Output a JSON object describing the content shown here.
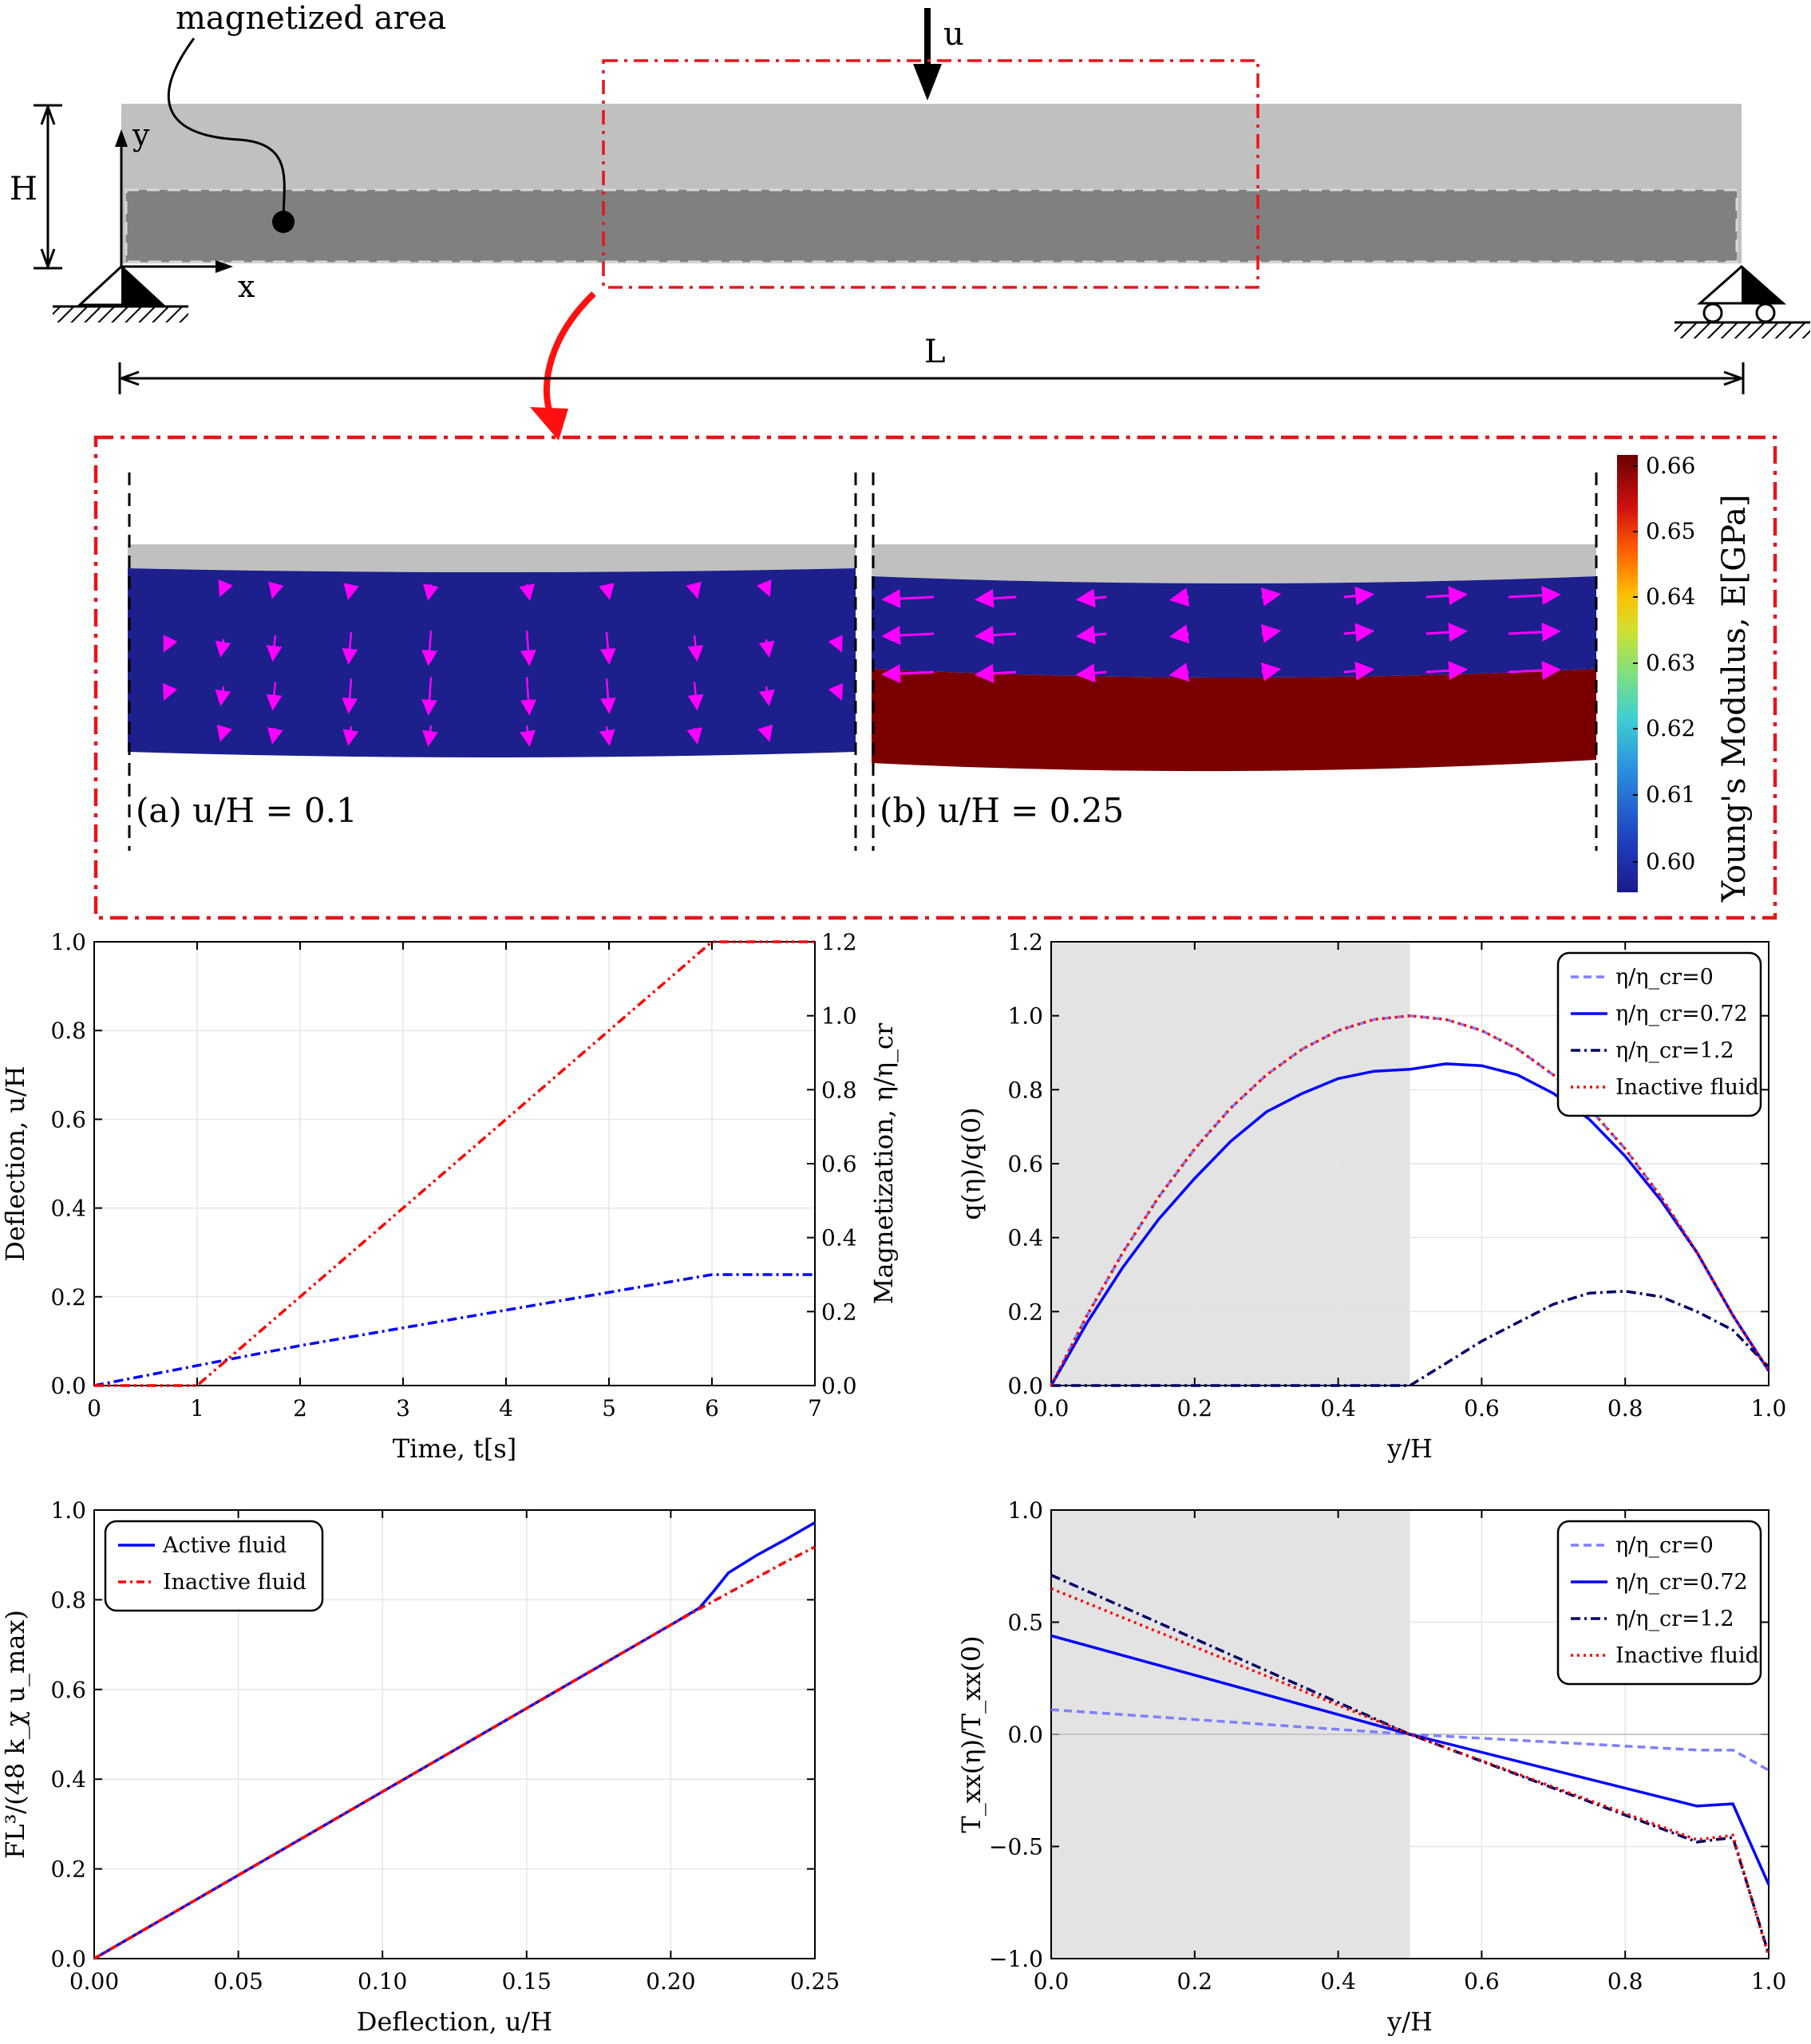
{
  "schematic": {
    "magnetized_label": "magnetized area",
    "load_label": "u",
    "height_label": "H",
    "length_label": "L",
    "y_axis_label": "y",
    "x_axis_label": "x"
  },
  "detail": {
    "panel_a_label": "(a) u/H = 0.1",
    "panel_b_label": "(b) u/H = 0.25",
    "colorbar_title": "Young's Modulus, E[GPa]",
    "colorbar_ticks": [
      "0.66",
      "0.65",
      "0.64",
      "0.63",
      "0.62",
      "0.61",
      "0.60"
    ],
    "colors": {
      "active_region": "#1c1f8c",
      "stiff_region": "#7a0000",
      "passive_layer": "#c0c0c0",
      "arrow": "#ff00ff",
      "frame": "#e8141b"
    }
  },
  "chart_data": [
    {
      "type": "line",
      "xlabel": "Time, t[s]",
      "ylabel": "Deflection, u/H",
      "y2label": "Magnetization, η/η_cr",
      "xlim": [
        0,
        7
      ],
      "ylim": [
        0,
        1.0
      ],
      "y2lim": [
        0,
        1.2
      ],
      "xticks": [
        "0",
        "1",
        "2",
        "3",
        "4",
        "5",
        "6",
        "7"
      ],
      "yticks": [
        "0.0",
        "0.2",
        "0.4",
        "0.6",
        "0.8",
        "1.0"
      ],
      "y2ticks": [
        "0.0",
        "0.2",
        "0.4",
        "0.6",
        "0.8",
        "1.0",
        "1.2"
      ],
      "grid": true,
      "series": [
        {
          "axis": "left",
          "color": "#0000ff",
          "x": [
            0,
            1,
            2,
            3,
            4,
            5,
            6,
            7
          ],
          "y": [
            0.0,
            0.045,
            0.09,
            0.13,
            0.17,
            0.21,
            0.25,
            0.25
          ]
        },
        {
          "axis": "right",
          "color": "#ff0000",
          "x": [
            0,
            1,
            2,
            3,
            4,
            5,
            6,
            7
          ],
          "y": [
            0.0,
            0.0,
            0.24,
            0.48,
            0.72,
            0.96,
            1.2,
            1.2
          ]
        }
      ]
    },
    {
      "type": "line",
      "xlabel": "y/H",
      "ylabel": "q(η)/q(0)",
      "xlim": [
        0,
        1.0
      ],
      "ylim": [
        0,
        1.2
      ],
      "xticks": [
        "0.0",
        "0.2",
        "0.4",
        "0.6",
        "0.8",
        "1.0"
      ],
      "yticks": [
        "0.0",
        "0.2",
        "0.4",
        "0.6",
        "0.8",
        "1.0",
        "1.2"
      ],
      "grid": true,
      "legend": "top-right",
      "shaded_x": [
        0,
        0.5
      ],
      "series": [
        {
          "name": "η/η_cr=0",
          "color": "#7f7fff",
          "dash": "10,6",
          "x": [
            0,
            0.05,
            0.1,
            0.15,
            0.2,
            0.25,
            0.3,
            0.35,
            0.4,
            0.45,
            0.5,
            0.55,
            0.6,
            0.65,
            0.7,
            0.75,
            0.8,
            0.85,
            0.9,
            0.95,
            1.0
          ],
          "y": [
            0,
            0.19,
            0.36,
            0.51,
            0.64,
            0.75,
            0.84,
            0.91,
            0.96,
            0.99,
            1.0,
            0.99,
            0.96,
            0.91,
            0.84,
            0.75,
            0.64,
            0.51,
            0.36,
            0.19,
            0.04
          ]
        },
        {
          "name": "η/η_cr=0.72",
          "color": "#0000ff",
          "dash": "",
          "x": [
            0,
            0.05,
            0.1,
            0.15,
            0.2,
            0.25,
            0.3,
            0.35,
            0.4,
            0.45,
            0.5,
            0.55,
            0.6,
            0.65,
            0.7,
            0.75,
            0.8,
            0.85,
            0.9,
            0.95,
            1.0
          ],
          "y": [
            0,
            0.17,
            0.32,
            0.45,
            0.56,
            0.66,
            0.74,
            0.79,
            0.83,
            0.85,
            0.855,
            0.87,
            0.865,
            0.84,
            0.79,
            0.72,
            0.62,
            0.5,
            0.36,
            0.19,
            0.04
          ]
        },
        {
          "name": "η/η_cr=1.2",
          "color": "#000066",
          "dash": "12,5,3,5",
          "x": [
            0,
            0.1,
            0.2,
            0.3,
            0.4,
            0.5,
            0.55,
            0.6,
            0.65,
            0.7,
            0.75,
            0.8,
            0.85,
            0.9,
            0.95,
            1.0
          ],
          "y": [
            0,
            0,
            0,
            0,
            0,
            0,
            0.06,
            0.12,
            0.17,
            0.22,
            0.25,
            0.255,
            0.24,
            0.2,
            0.15,
            0.05
          ]
        },
        {
          "name": "Inactive fluid",
          "color": "#ff0000",
          "dash": "3,5",
          "x": [
            0,
            0.05,
            0.1,
            0.15,
            0.2,
            0.25,
            0.3,
            0.35,
            0.4,
            0.45,
            0.5,
            0.55,
            0.6,
            0.65,
            0.7,
            0.75,
            0.8,
            0.85,
            0.9,
            0.95,
            1.0
          ],
          "y": [
            0,
            0.19,
            0.36,
            0.51,
            0.64,
            0.75,
            0.84,
            0.91,
            0.96,
            0.99,
            1.0,
            0.99,
            0.96,
            0.91,
            0.84,
            0.75,
            0.64,
            0.51,
            0.36,
            0.19,
            0.04
          ]
        }
      ]
    },
    {
      "type": "line",
      "xlabel": "Deflection, u/H",
      "ylabel": "FL³/(48 k_χ u_max)",
      "xlim": [
        0,
        0.25
      ],
      "ylim": [
        0,
        1.0
      ],
      "xticks": [
        "0.00",
        "0.05",
        "0.10",
        "0.15",
        "0.20",
        "0.25"
      ],
      "yticks": [
        "0.0",
        "0.2",
        "0.4",
        "0.6",
        "0.8",
        "1.0"
      ],
      "grid": true,
      "legend": "top-left",
      "series": [
        {
          "name": "Active fluid",
          "color": "#0000ff",
          "dash": "",
          "x": [
            0,
            0.05,
            0.1,
            0.15,
            0.2,
            0.21,
            0.215,
            0.22,
            0.23,
            0.24,
            0.25
          ],
          "y": [
            0,
            0.186,
            0.372,
            0.558,
            0.744,
            0.782,
            0.82,
            0.86,
            0.9,
            0.935,
            0.972
          ]
        },
        {
          "name": "Inactive fluid",
          "color": "#ff0000",
          "dash": "10,5,3,5",
          "x": [
            0,
            0.05,
            0.1,
            0.15,
            0.2,
            0.21,
            0.22,
            0.23,
            0.24,
            0.25
          ],
          "y": [
            0,
            0.186,
            0.372,
            0.558,
            0.744,
            0.78,
            0.815,
            0.85,
            0.885,
            0.918
          ]
        }
      ]
    },
    {
      "type": "line",
      "xlabel": "y/H",
      "ylabel": "T_xx(η)/T_xx(0)",
      "xlim": [
        0,
        1.0
      ],
      "ylim": [
        -1.0,
        1.0
      ],
      "xticks": [
        "0.0",
        "0.2",
        "0.4",
        "0.6",
        "0.8",
        "1.0"
      ],
      "yticks": [
        "1.0",
        "0.5",
        "0.0",
        "−0.5",
        "−1.0"
      ],
      "grid": true,
      "legend": "top-right",
      "shaded_x": [
        0,
        0.5
      ],
      "series": [
        {
          "name": "η/η_cr=0",
          "color": "#7f7fff",
          "dash": "10,6",
          "x": [
            0,
            0.5,
            0.9,
            0.95,
            1.0
          ],
          "y": [
            0.11,
            0.0,
            -0.07,
            -0.07,
            -0.16
          ]
        },
        {
          "name": "η/η_cr=0.72",
          "color": "#0000ff",
          "dash": "",
          "x": [
            0,
            0.5,
            0.9,
            0.95,
            1.0
          ],
          "y": [
            0.44,
            0.0,
            -0.32,
            -0.31,
            -0.67
          ]
        },
        {
          "name": "η/η_cr=1.2",
          "color": "#000066",
          "dash": "12,5,3,5",
          "x": [
            0,
            0.5,
            0.9,
            0.95,
            1.0
          ],
          "y": [
            0.71,
            0.0,
            -0.48,
            -0.46,
            -0.98
          ]
        },
        {
          "name": "Inactive fluid",
          "color": "#ff0000",
          "dash": "3,5",
          "x": [
            0,
            0.5,
            0.9,
            0.95,
            1.0
          ],
          "y": [
            0.65,
            0.0,
            -0.47,
            -0.45,
            -0.99
          ]
        }
      ]
    }
  ]
}
